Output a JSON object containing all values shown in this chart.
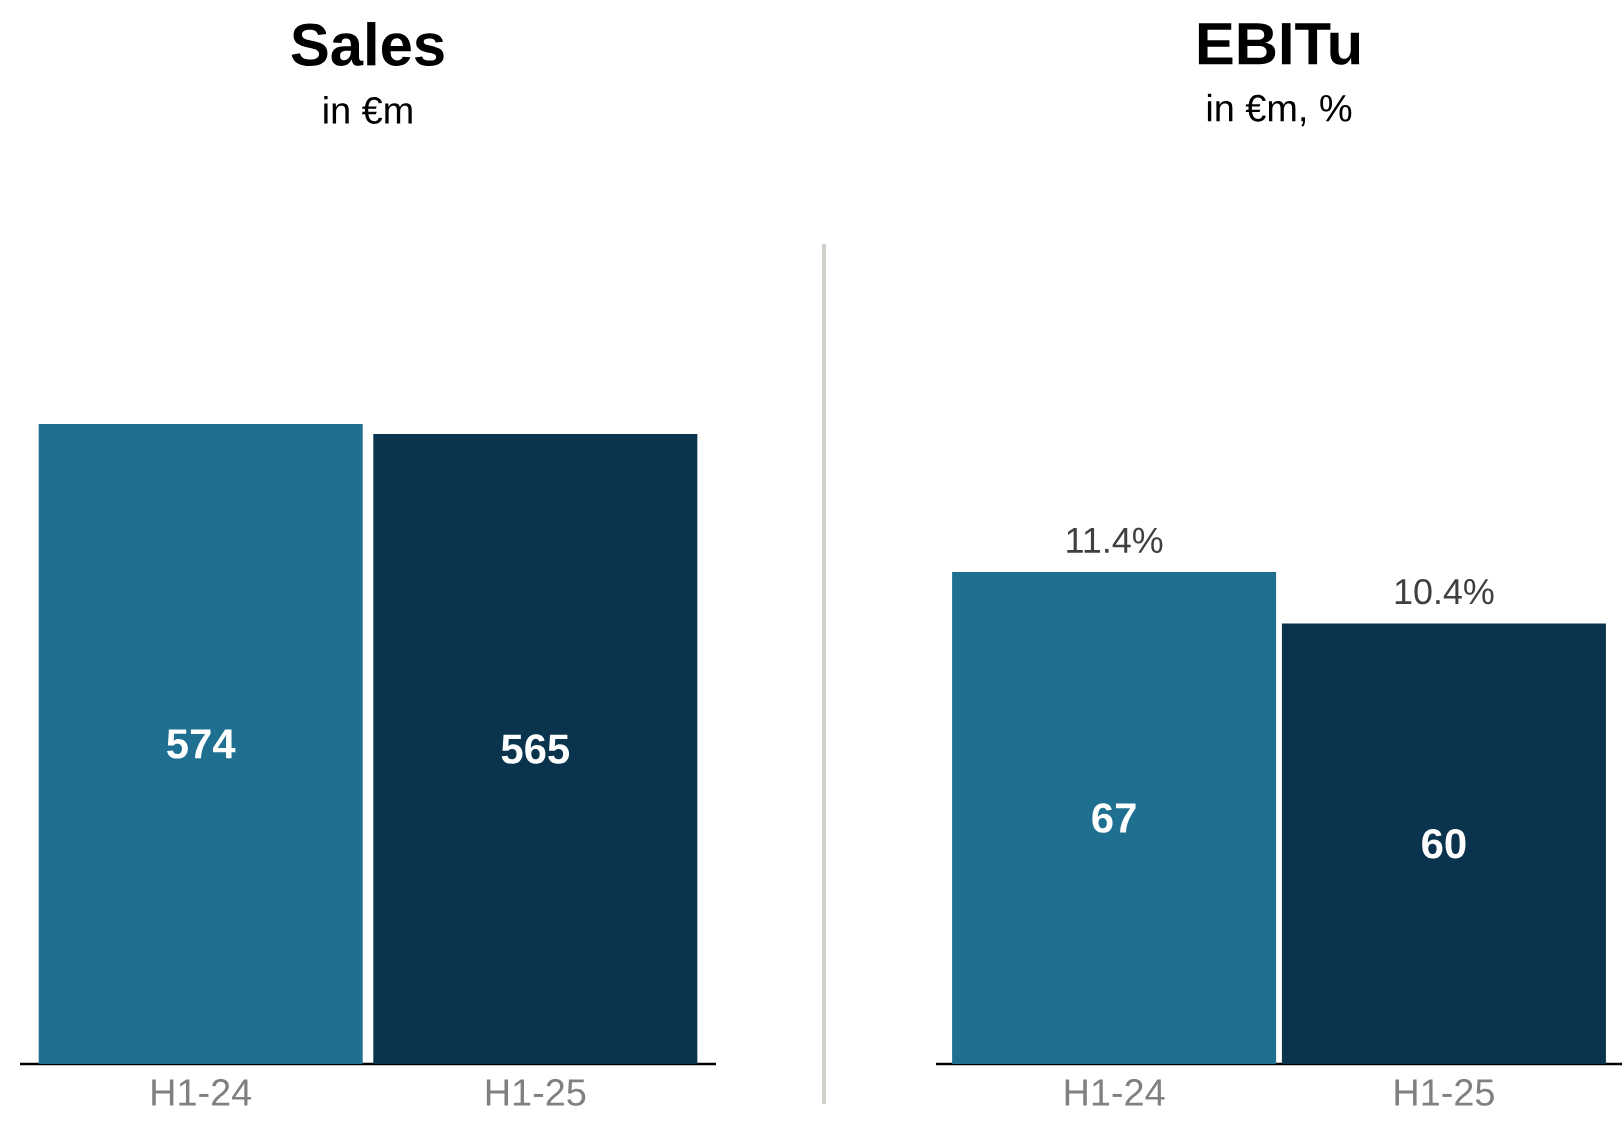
{
  "chart_data": [
    {
      "type": "bar",
      "title": "Sales",
      "subtitle": "in €m",
      "categories": [
        "H1-24",
        "H1-25"
      ],
      "values": [
        574,
        565
      ],
      "colors": [
        "#1f7090",
        "#0a344e"
      ],
      "data_labels": true,
      "tick_labels": "x"
    },
    {
      "type": "bar",
      "title": "EBITu",
      "subtitle": "in €m, %",
      "categories": [
        "H1-24",
        "H1-25"
      ],
      "values": [
        67,
        60
      ],
      "colors": [
        "#1f7090",
        "#0a344e"
      ],
      "data_labels": true,
      "tick_labels": "x",
      "annotations": [
        {
          "text": "11.4%",
          "x": "H1-24",
          "y": 67
        },
        {
          "text": "10.4%",
          "x": "H1-25",
          "y": 60
        }
      ]
    }
  ]
}
